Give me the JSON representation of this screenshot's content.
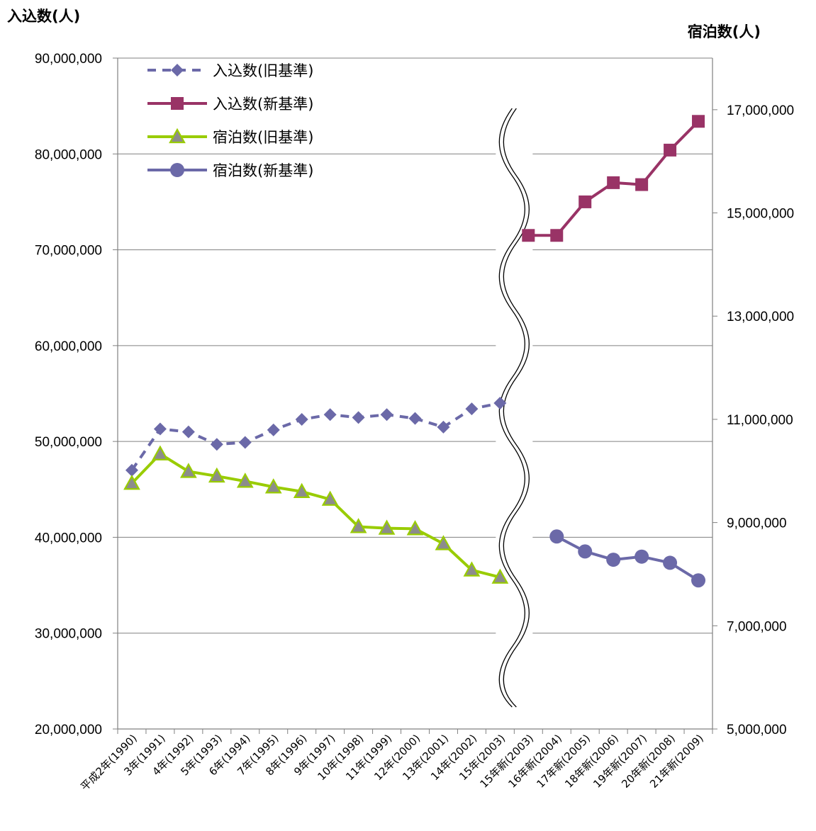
{
  "chart_data": {
    "type": "line",
    "left_axis_title": "入込数(人)",
    "right_axis_title": "宿泊数(人)",
    "left_ylim": [
      20000000,
      90000000
    ],
    "left_ticks": [
      "20,000,000",
      "30,000,000",
      "40,000,000",
      "50,000,000",
      "60,000,000",
      "70,000,000",
      "80,000,000",
      "90,000,000"
    ],
    "right_ylim": [
      5000000,
      18000000
    ],
    "right_ticks": [
      "5,000,000",
      "7,000,000",
      "9,000,000",
      "11,000,000",
      "13,000,000",
      "15,000,000",
      "17,000,000"
    ],
    "grid": true,
    "legend_position": "top-left",
    "categories": [
      "平成2年(1990)",
      "3年(1991)",
      "4年(1992)",
      "5年(1993)",
      "6年(1994)",
      "7年(1995)",
      "8年(1996)",
      "9年(1997)",
      "10年(1998)",
      "11年(1999)",
      "12年(2000)",
      "13年(2001)",
      "14年(2002)",
      "15年(2003)",
      "15年新(2003)",
      "16年新(2004)",
      "17年新(2005)",
      "18年新(2006)",
      "19年新(2007)",
      "20年新(2008)",
      "21年新(2009)"
    ],
    "series": [
      {
        "name": "入込数(旧基準)",
        "axis": "left",
        "color": "#6b69a8",
        "marker": "diamond",
        "dashed": true,
        "values": [
          47000000,
          51300000,
          51000000,
          49700000,
          49900000,
          51200000,
          52300000,
          52800000,
          52500000,
          52800000,
          52400000,
          51500000,
          53400000,
          54000000,
          null,
          null,
          null,
          null,
          null,
          null,
          null
        ]
      },
      {
        "name": "入込数(新基準)",
        "axis": "left",
        "color": "#993366",
        "marker": "square",
        "dashed": false,
        "values": [
          null,
          null,
          null,
          null,
          null,
          null,
          null,
          null,
          null,
          null,
          null,
          null,
          null,
          null,
          71500000,
          71500000,
          75000000,
          77000000,
          76800000,
          80400000,
          83400000
        ]
      },
      {
        "name": "宿泊数(旧基準)",
        "axis": "right",
        "color": "#99cc00",
        "marker": "triangle",
        "dashed": false,
        "values": [
          9760000,
          10330000,
          9990000,
          9900000,
          9800000,
          9690000,
          9600000,
          9450000,
          8920000,
          8890000,
          8880000,
          8590000,
          8080000,
          7940000,
          null,
          null,
          null,
          null,
          null,
          null,
          null
        ]
      },
      {
        "name": "宿泊数(新基準)",
        "axis": "right",
        "color": "#6b69a8",
        "marker": "circle",
        "dashed": false,
        "values": [
          null,
          null,
          null,
          null,
          null,
          null,
          null,
          null,
          null,
          null,
          null,
          null,
          null,
          null,
          null,
          8730000,
          8440000,
          8280000,
          8340000,
          8220000,
          7880000
        ]
      }
    ]
  }
}
